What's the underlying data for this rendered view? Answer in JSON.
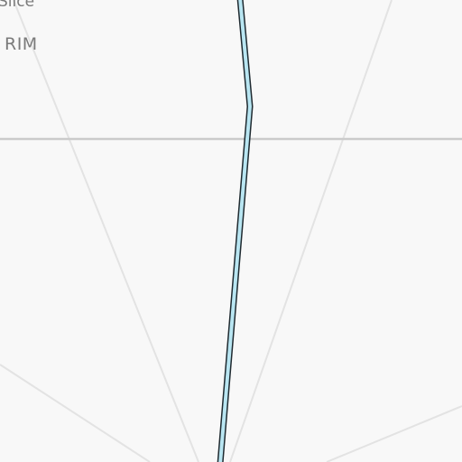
{
  "map": {
    "labels": {
      "top_partial": "Slice",
      "area": "RIM"
    },
    "colors": {
      "background": "#f8f8f8",
      "road": "#e3e3e3",
      "major_road": "#cbcbcb",
      "route_fill": "#b9e6f2",
      "route_outline": "#1f2a30",
      "label": "#7a7a7a"
    },
    "route": {
      "state": "highlighted"
    }
  }
}
